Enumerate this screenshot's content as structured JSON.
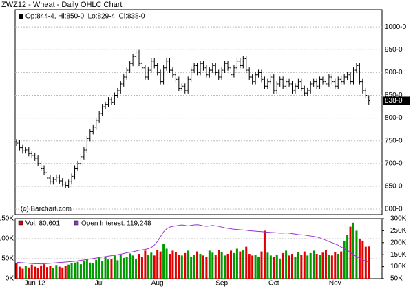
{
  "chart_data": [
    {
      "type": "ohlc",
      "title": "ZWZ12 - Wheat - Daily OHLC Chart",
      "legend_text": "Op:844-4, Hi:850-0, Lo:829-4, Cl:838-0",
      "annotation": "(c) Barchart.com",
      "last_value_label": "838-0",
      "color": "#000000",
      "categories": [
        null,
        null,
        null,
        null,
        null,
        null,
        "Jun 12",
        null,
        null,
        null,
        null,
        null,
        null,
        null,
        null,
        null,
        null,
        null,
        null,
        null,
        null,
        null,
        null,
        null,
        null,
        null,
        null,
        "Jul",
        null,
        null,
        null,
        null,
        null,
        null,
        null,
        null,
        null,
        null,
        null,
        null,
        null,
        null,
        null,
        null,
        null,
        null,
        "Aug",
        null,
        null,
        null,
        null,
        null,
        null,
        null,
        null,
        null,
        null,
        null,
        null,
        null,
        null,
        null,
        null,
        null,
        null,
        null,
        null,
        "Sep",
        null,
        null,
        null,
        null,
        null,
        null,
        null,
        null,
        null,
        null,
        null,
        null,
        null,
        null,
        null,
        null,
        "Oct",
        null,
        null,
        null,
        null,
        null,
        null,
        null,
        null,
        null,
        null,
        null,
        null,
        null,
        null,
        null,
        null,
        null,
        null,
        null,
        "Nov",
        null,
        null,
        null,
        null,
        null,
        null,
        null,
        null,
        null,
        null,
        null
      ],
      "open": [
        748,
        745,
        735,
        728,
        730,
        722,
        718,
        712,
        700,
        690,
        680,
        668,
        660,
        665,
        670,
        662,
        655,
        652,
        660,
        672,
        690,
        700,
        715,
        730,
        755,
        770,
        780,
        795,
        810,
        825,
        830,
        840,
        835,
        850,
        860,
        875,
        890,
        905,
        920,
        935,
        945,
        920,
        910,
        890,
        905,
        925,
        915,
        900,
        880,
        910,
        925,
        905,
        895,
        885,
        865,
        870,
        860,
        885,
        905,
        915,
        900,
        920,
        910,
        895,
        905,
        915,
        900,
        890,
        905,
        920,
        910,
        895,
        910,
        925,
        915,
        930,
        905,
        890,
        880,
        895,
        900,
        885,
        870,
        880,
        890,
        860,
        875,
        885,
        870,
        880,
        875,
        860,
        870,
        880,
        865,
        855,
        860,
        875,
        880,
        870,
        885,
        880,
        875,
        890,
        880,
        870,
        885,
        880,
        890,
        895,
        880,
        905,
        915,
        880,
        860,
        844.5
      ],
      "high": [
        754,
        751,
        741,
        736,
        736,
        728,
        724,
        718,
        706,
        696,
        686,
        674,
        671,
        676,
        676,
        668,
        661,
        666,
        678,
        696,
        706,
        721,
        736,
        761,
        776,
        786,
        801,
        816,
        831,
        836,
        846,
        846,
        856,
        866,
        881,
        896,
        911,
        926,
        941,
        951,
        951,
        926,
        916,
        911,
        931,
        931,
        921,
        906,
        916,
        931,
        931,
        911,
        901,
        891,
        876,
        876,
        891,
        911,
        921,
        921,
        926,
        926,
        916,
        911,
        921,
        921,
        906,
        911,
        926,
        926,
        916,
        916,
        931,
        931,
        936,
        936,
        911,
        896,
        901,
        906,
        906,
        891,
        886,
        896,
        896,
        881,
        891,
        891,
        886,
        886,
        881,
        876,
        886,
        886,
        871,
        866,
        881,
        886,
        886,
        891,
        891,
        886,
        896,
        896,
        886,
        891,
        891,
        896,
        901,
        901,
        911,
        921,
        921,
        886,
        866,
        850
      ],
      "low": [
        739,
        729,
        722,
        722,
        716,
        712,
        706,
        694,
        684,
        674,
        662,
        654,
        654,
        659,
        656,
        649,
        646,
        646,
        654,
        666,
        684,
        694,
        709,
        724,
        749,
        764,
        774,
        789,
        804,
        819,
        824,
        829,
        829,
        844,
        854,
        869,
        884,
        899,
        914,
        929,
        914,
        904,
        884,
        884,
        899,
        909,
        894,
        874,
        874,
        904,
        899,
        889,
        879,
        859,
        859,
        854,
        854,
        879,
        899,
        894,
        894,
        904,
        889,
        889,
        899,
        894,
        884,
        884,
        899,
        904,
        889,
        889,
        904,
        909,
        909,
        899,
        884,
        874,
        874,
        889,
        879,
        864,
        864,
        874,
        854,
        854,
        869,
        864,
        864,
        869,
        854,
        854,
        864,
        859,
        849,
        849,
        854,
        869,
        864,
        864,
        874,
        869,
        869,
        874,
        864,
        864,
        874,
        874,
        884,
        874,
        874,
        899,
        874,
        854,
        844,
        829.5
      ],
      "close": [
        745,
        735,
        728,
        730,
        722,
        718,
        712,
        700,
        690,
        680,
        668,
        660,
        665,
        670,
        662,
        655,
        652,
        660,
        672,
        690,
        700,
        715,
        730,
        755,
        770,
        780,
        795,
        810,
        825,
        830,
        840,
        835,
        850,
        860,
        875,
        890,
        905,
        920,
        935,
        945,
        920,
        910,
        890,
        905,
        925,
        915,
        900,
        880,
        910,
        925,
        905,
        895,
        885,
        865,
        870,
        860,
        885,
        905,
        915,
        900,
        920,
        910,
        895,
        905,
        915,
        900,
        890,
        905,
        920,
        910,
        895,
        910,
        925,
        915,
        930,
        905,
        890,
        880,
        895,
        900,
        885,
        870,
        880,
        890,
        860,
        875,
        885,
        870,
        880,
        875,
        860,
        870,
        880,
        865,
        855,
        860,
        875,
        880,
        870,
        885,
        880,
        875,
        890,
        880,
        870,
        885,
        880,
        890,
        895,
        880,
        905,
        915,
        880,
        860,
        850,
        838
      ],
      "ylim": [
        588,
        1038
      ],
      "yticks": [
        {
          "value": 600,
          "label": "600-0"
        },
        {
          "value": 650,
          "label": "650-0"
        },
        {
          "value": 700,
          "label": "700-0"
        },
        {
          "value": 750,
          "label": "750-0"
        },
        {
          "value": 800,
          "label": "800-0"
        },
        {
          "value": 850,
          "label": "850-0"
        },
        {
          "value": 900,
          "label": "900-0"
        },
        {
          "value": 950,
          "label": "950-0"
        },
        {
          "value": 1000,
          "label": "1000-0"
        }
      ],
      "grid": true
    },
    {
      "type": "volume",
      "up_color": "#009900",
      "down_color": "#e00000",
      "series": [
        {
          "name": "Vol: 80,601",
          "color": "#e00000",
          "values": [
            38000,
            30000,
            25000,
            32000,
            28000,
            35000,
            30000,
            27000,
            33000,
            36000,
            29000,
            31000,
            26000,
            34000,
            30000,
            28000,
            32000,
            35000,
            38000,
            40000,
            42000,
            36000,
            45000,
            50000,
            40000,
            38000,
            47000,
            52000,
            44000,
            55000,
            48000,
            50000,
            58000,
            46000,
            60000,
            52000,
            55000,
            63000,
            58000,
            50000,
            62000,
            55000,
            70000,
            60000,
            65000,
            58000,
            72000,
            68000,
            88000,
            75000,
            62000,
            70000,
            66000,
            60000,
            58000,
            64000,
            70000,
            55000,
            60000,
            68000,
            62000,
            58000,
            55000,
            70000,
            65000,
            60000,
            72000,
            66000,
            58000,
            62000,
            70000,
            64000,
            75000,
            68000,
            72000,
            80000,
            62000,
            58000,
            60000,
            55000,
            68000,
            120000,
            65000,
            58000,
            55000,
            60000,
            50000,
            64000,
            70000,
            58000,
            62000,
            55000,
            66000,
            60000,
            68000,
            58000,
            64000,
            70000,
            62000,
            60000,
            65000,
            72000,
            60000,
            58000,
            66000,
            62000,
            68000,
            95000,
            110000,
            130000,
            140000,
            120000,
            100000,
            95000,
            80000,
            80601
          ]
        },
        {
          "name": "Open Interest: 119,248",
          "color": "#9933cc",
          "axis": "y2",
          "values": [
            118000,
            117000,
            116000,
            115000,
            114000,
            113000,
            112000,
            112000,
            111000,
            112000,
            113000,
            114000,
            115000,
            116000,
            117000,
            118000,
            119000,
            120000,
            121000,
            122000,
            124000,
            126000,
            128000,
            130000,
            132000,
            134000,
            136000,
            138000,
            140000,
            142000,
            144000,
            146000,
            148000,
            150000,
            152000,
            155000,
            158000,
            160000,
            162000,
            165000,
            168000,
            170000,
            172000,
            175000,
            180000,
            190000,
            205000,
            225000,
            245000,
            258000,
            265000,
            268000,
            270000,
            272000,
            274000,
            272000,
            270000,
            272000,
            274000,
            275000,
            273000,
            270000,
            268000,
            270000,
            272000,
            270000,
            268000,
            265000,
            262000,
            260000,
            258000,
            256000,
            255000,
            254000,
            253000,
            252000,
            250000,
            249000,
            248000,
            247000,
            246000,
            245000,
            244000,
            243000,
            242000,
            241000,
            240000,
            240000,
            241000,
            240000,
            238000,
            236000,
            234000,
            233000,
            232000,
            230000,
            228000,
            226000,
            224000,
            220000,
            215000,
            210000,
            205000,
            200000,
            195000,
            190000,
            182000,
            175000,
            168000,
            160000,
            150000,
            142000,
            135000,
            128000,
            123000,
            119248
          ]
        }
      ],
      "ylim": [
        0,
        150000
      ],
      "yticks": [
        {
          "value": 0,
          "label": "0K"
        },
        {
          "value": 50000,
          "label": "50K"
        },
        {
          "value": 100000,
          "label": "100K"
        },
        {
          "value": 150000,
          "label": "150K"
        }
      ],
      "y2lim": [
        50000,
        300000
      ],
      "y2ticks": [
        {
          "value": 50000,
          "label": "50K"
        },
        {
          "value": 100000,
          "label": "100K"
        },
        {
          "value": 150000,
          "label": "150K"
        },
        {
          "value": 200000,
          "label": "200K"
        },
        {
          "value": 250000,
          "label": "250K"
        },
        {
          "value": 300000,
          "label": "300K"
        }
      ],
      "grid": true
    }
  ]
}
